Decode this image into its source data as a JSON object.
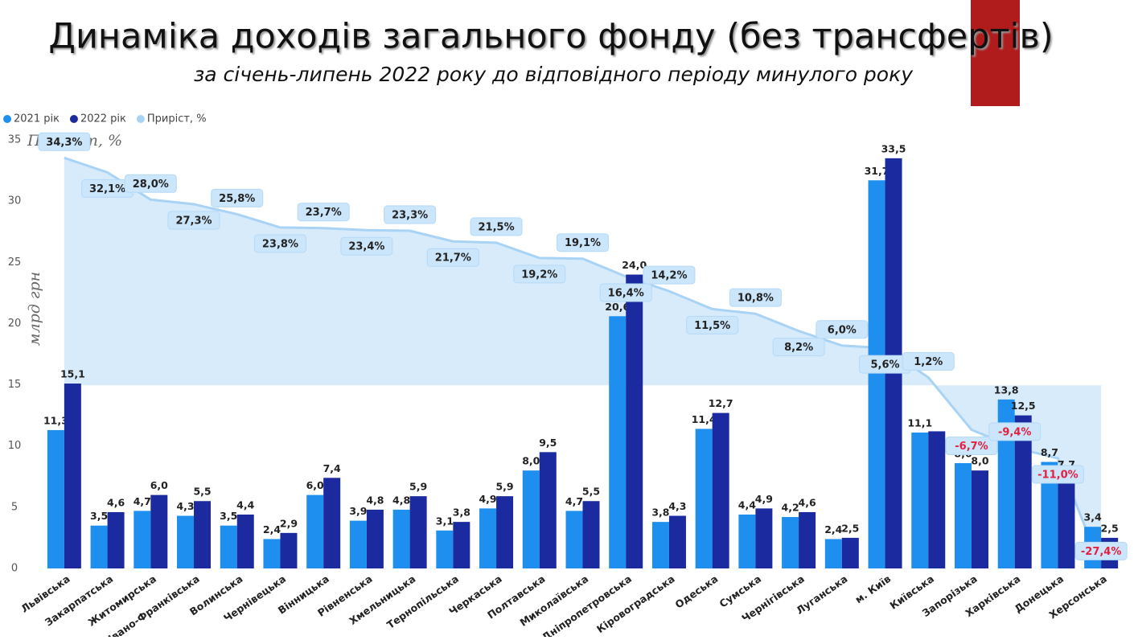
{
  "chart_data": {
    "type": "combo",
    "title": "Динаміка доходів загального фонду (без трансфертів)",
    "subtitle": "за січень-липень 2022 року до відповідного періоду минулого року",
    "y_label": "млрд грн",
    "y2_label": "Приріст, %",
    "categories": [
      "Львівська",
      "Закарпатська",
      "Житомирська",
      "Івано-Франківська",
      "Волинська",
      "Чернівецька",
      "Вінницька",
      "Рівненська",
      "Хмельницька",
      "Тернопільська",
      "Черкаська",
      "Полтавська",
      "Миколаївська",
      "Дніпропетровська",
      "Кіровоградська",
      "Одеська",
      "Сумська",
      "Чернігівська",
      "Луганська",
      "м. Київ",
      "Київська",
      "Запорізька",
      "Харківська",
      "Донецька",
      "Херсонська"
    ],
    "series": [
      {
        "name": "2021 рік",
        "type": "bar",
        "color": "#1e8fee",
        "values": [
          11.3,
          3.5,
          4.7,
          4.3,
          3.5,
          2.4,
          6.0,
          3.9,
          4.8,
          3.1,
          4.9,
          8.0,
          4.7,
          20.6,
          3.8,
          11.4,
          4.4,
          4.2,
          2.4,
          31.7,
          11.1,
          8.6,
          13.8,
          8.7,
          3.4
        ],
        "value_labels": [
          "11,3",
          "3,5",
          "4,7",
          "4,3",
          "3,5",
          "2,4",
          "6,0",
          "3,9",
          "4,8",
          "3,1",
          "4,9",
          "8,0",
          "4,7",
          "20,6",
          "3,8",
          "11,4",
          "4,4",
          "4,2",
          "2,4",
          "31,7",
          "11,1",
          "8,6",
          "13,8",
          "8,7",
          "3,4"
        ]
      },
      {
        "name": "2022 рік",
        "type": "bar",
        "color": "#1b2a9e",
        "values": [
          15.1,
          4.6,
          6.0,
          5.5,
          4.4,
          2.9,
          7.4,
          4.8,
          5.9,
          3.8,
          5.9,
          9.5,
          5.5,
          24.0,
          4.3,
          12.7,
          4.9,
          4.6,
          2.5,
          33.5,
          11.2,
          8.0,
          12.5,
          7.7,
          2.5
        ],
        "value_labels": [
          "15,1",
          "4,6",
          "6,0",
          "5,5",
          "4,4",
          "2,9",
          "7,4",
          "4,8",
          "5,9",
          "3,8",
          "5,9",
          "9,5",
          "5,5",
          "24,0",
          "4,3",
          "12,7",
          "4,9",
          "4,6",
          "2,5",
          "33,5",
          null,
          "8,0",
          "12,5",
          "7,7",
          "2,5"
        ]
      },
      {
        "name": "Приріст, %",
        "type": "line",
        "axis": "y2",
        "color": "#a9d3f5",
        "negative_label_color": "#e3203f",
        "values": [
          34.3,
          32.1,
          28.0,
          27.3,
          25.8,
          23.8,
          23.7,
          23.4,
          23.3,
          21.7,
          21.5,
          19.2,
          19.1,
          16.4,
          14.2,
          11.5,
          10.8,
          8.2,
          6.0,
          5.6,
          1.2,
          -6.7,
          -9.4,
          -11.0,
          -27.4
        ],
        "value_labels": [
          "34,3%",
          "32,1%",
          "28,0%",
          "27,3%",
          "25,8%",
          "23,8%",
          "23,7%",
          "23,4%",
          "23,3%",
          "21,7%",
          "21,5%",
          "19,2%",
          "19,1%",
          "16,4%",
          "14,2%",
          "11,5%",
          "10,8%",
          "8,2%",
          "6,0%",
          "5,6%",
          "1,2%",
          "-6,7%",
          "-9,4%",
          "-11,0%",
          "-27,4%"
        ]
      }
    ],
    "ylim": [
      0,
      35
    ],
    "yticks": [
      0,
      5,
      10,
      15,
      20,
      25,
      30,
      35
    ],
    "y2lim": [
      -27.6,
      37.0
    ]
  }
}
